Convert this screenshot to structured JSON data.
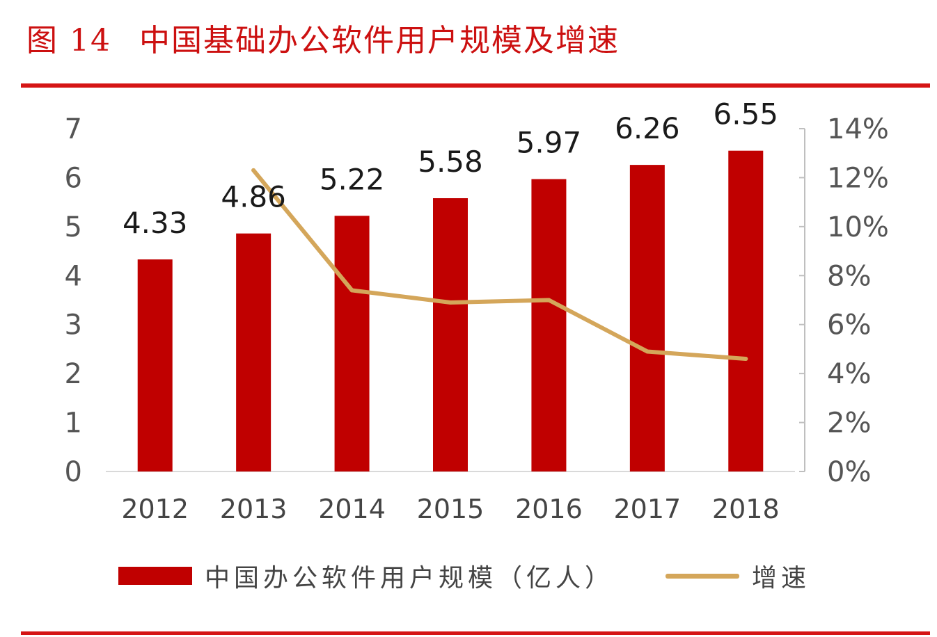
{
  "figure": {
    "number": "图 14",
    "title": "中国基础办公软件用户规模及增速"
  },
  "colors": {
    "accent": "#d51515",
    "bar": "#c00000",
    "line": "#d4a65a"
  },
  "chart_data": {
    "type": "bar",
    "categories": [
      "2012",
      "2013",
      "2014",
      "2015",
      "2016",
      "2017",
      "2018"
    ],
    "series": [
      {
        "name": "中国办公软件用户规模（亿人）",
        "type": "bar",
        "axis": "left",
        "values": [
          4.33,
          4.86,
          5.22,
          5.58,
          5.97,
          6.26,
          6.55
        ],
        "value_labels": [
          "4.33",
          "4.86",
          "5.22",
          "5.58",
          "5.97",
          "6.26",
          "6.55"
        ]
      },
      {
        "name": "增速",
        "type": "line",
        "axis": "right",
        "values": [
          null,
          12.3,
          7.4,
          6.9,
          7.0,
          4.9,
          4.6
        ]
      }
    ],
    "y_left": {
      "ylim": [
        0,
        7
      ],
      "ticks": [
        "0",
        "1",
        "2",
        "3",
        "4",
        "5",
        "6",
        "7"
      ]
    },
    "y_right": {
      "ylim": [
        0,
        14
      ],
      "ticks": [
        "0%",
        "2%",
        "4%",
        "6%",
        "8%",
        "10%",
        "12%",
        "14%"
      ]
    },
    "grid": false,
    "legend_position": "bottom"
  }
}
